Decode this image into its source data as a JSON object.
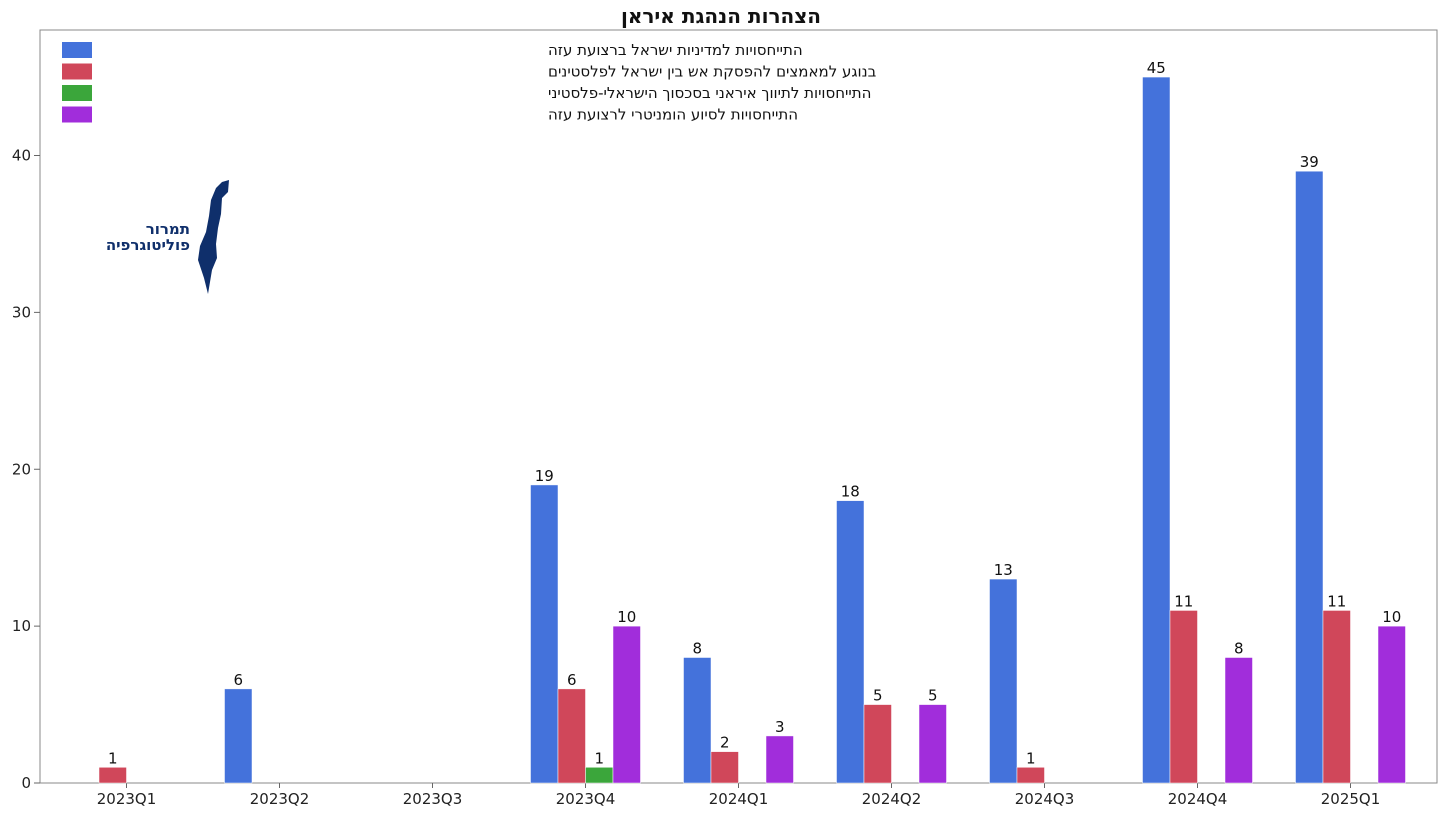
{
  "chart_data": {
    "type": "bar",
    "title": "הצהרות הנהגת איראן",
    "xlabel": "",
    "ylabel": "",
    "categories": [
      "2023Q1",
      "2023Q2",
      "2023Q3",
      "2023Q4",
      "2024Q1",
      "2024Q2",
      "2024Q3",
      "2024Q4",
      "2025Q1"
    ],
    "ylim": [
      0,
      48
    ],
    "yticks": [
      0,
      10,
      20,
      30,
      40
    ],
    "grid": false,
    "legend_position": "top-left",
    "series": [
      {
        "name": "התייחסויות למדיניות ישראל ברצועת עזה",
        "color": "#4472db",
        "values": [
          null,
          6,
          null,
          19,
          8,
          18,
          13,
          45,
          39
        ]
      },
      {
        "name": "בנוגע למאמצים להפסקת אש בין ישראל לפלסטינים",
        "color": "#d0475a",
        "values": [
          1,
          null,
          null,
          6,
          2,
          5,
          1,
          11,
          11
        ]
      },
      {
        "name": "התייחסויות לתיווך איראני בסכסוך הישראלי-פלסטיני",
        "color": "#3ba63b",
        "values": [
          null,
          null,
          null,
          1,
          null,
          null,
          null,
          null,
          null
        ]
      },
      {
        "name": "התייחסויות לסיוע הומניטרי לרצועת עזה",
        "color": "#a12ddb",
        "values": [
          null,
          null,
          null,
          10,
          3,
          5,
          null,
          8,
          10
        ]
      }
    ]
  },
  "logo": {
    "line1": "תמרור",
    "line2": "פוליטוגרפיה",
    "color": "#0f2f6b",
    "icon": "israel-map-icon"
  }
}
